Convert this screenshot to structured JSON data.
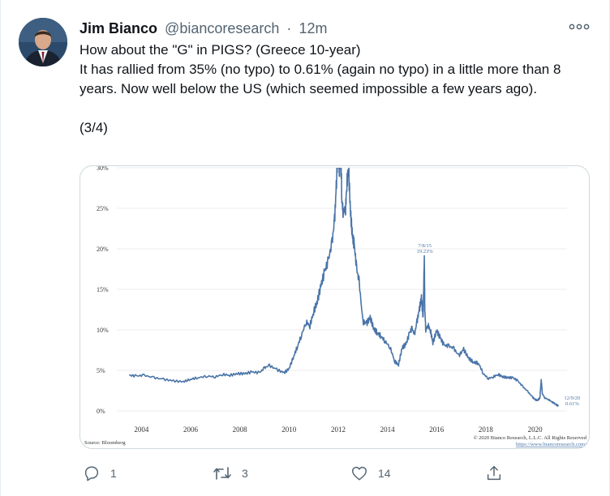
{
  "author": {
    "name": "Jim Bianco",
    "handle": "@biancoresearch",
    "separator": "·",
    "time": "12m"
  },
  "tweet": {
    "line1": "How about the \"G\" in PIGS? (Greece 10-year)",
    "line2": "It has rallied from 35% (no typo) to 0.61% (again no typo) in a little more than 8 years.  Now well below the US (which seemed impossible a few years ago).",
    "thread_marker": "(3/4)"
  },
  "actions": {
    "reply_count": "1",
    "retweet_count": "3",
    "like_count": "14"
  },
  "icons": {
    "more": "more-icon",
    "reply": "reply-icon",
    "retweet": "retweet-icon",
    "like": "heart-icon",
    "share": "share-icon"
  },
  "colors": {
    "line": "#4a74a8",
    "text_secondary": "#536471",
    "border": "#cfd9de"
  },
  "chart_data": {
    "type": "line",
    "title": "",
    "xlabel": "",
    "ylabel": "",
    "x_ticks": [
      "2004",
      "2006",
      "2008",
      "2010",
      "2012",
      "2014",
      "2016",
      "2018",
      "2020"
    ],
    "y_ticks": [
      "0%",
      "5%",
      "10%",
      "15%",
      "20%",
      "25%",
      "30%"
    ],
    "xlim": [
      2003.0,
      2021.3
    ],
    "ylim": [
      0,
      30
    ],
    "grid": true,
    "series": [
      {
        "x": [
          2003.5,
          2003.8,
          2004.1,
          2004.5,
          2004.9,
          2005.3,
          2005.7,
          2006.0,
          2006.3,
          2006.7,
          2007.0,
          2007.3,
          2007.6,
          2007.9,
          2008.2,
          2008.5,
          2008.8,
          2009.0,
          2009.2,
          2009.5,
          2009.8,
          2010.0,
          2010.2,
          2010.35,
          2010.5,
          2010.7,
          2010.85,
          2011.0,
          2011.15,
          2011.3,
          2011.45,
          2011.6,
          2011.75,
          2011.85,
          2011.92,
          2012.0,
          2012.05,
          2012.1,
          2012.15,
          2012.2,
          2012.3,
          2012.35,
          2012.42,
          2012.5,
          2012.58,
          2012.65,
          2012.75,
          2012.85,
          2013.0,
          2013.15,
          2013.3,
          2013.45,
          2013.6,
          2013.75,
          2013.9,
          2014.1,
          2014.3,
          2014.45,
          2014.6,
          2014.75,
          2014.9,
          2015.0,
          2015.1,
          2015.2,
          2015.3,
          2015.38,
          2015.45,
          2015.5,
          2015.52,
          2015.56,
          2015.65,
          2015.75,
          2015.85,
          2016.0,
          2016.15,
          2016.3,
          2016.5,
          2016.7,
          2016.9,
          2017.1,
          2017.3,
          2017.5,
          2017.7,
          2017.9,
          2018.1,
          2018.3,
          2018.5,
          2018.7,
          2018.9,
          2019.1,
          2019.3,
          2019.5,
          2019.7,
          2019.9,
          2020.0,
          2020.1,
          2020.2,
          2020.25,
          2020.3,
          2020.4,
          2020.55,
          2020.7,
          2020.85,
          2020.95
        ],
        "y": [
          4.4,
          4.3,
          4.4,
          4.1,
          3.9,
          3.7,
          3.6,
          3.9,
          4.1,
          4.3,
          4.2,
          4.5,
          4.4,
          4.6,
          4.6,
          4.8,
          4.7,
          5.3,
          5.6,
          5.1,
          4.7,
          5.2,
          6.8,
          8.0,
          9.3,
          11.0,
          10.5,
          12.2,
          13.5,
          15.5,
          17.2,
          18.6,
          20.8,
          23.5,
          27.5,
          33.0,
          29.0,
          33.0,
          26.0,
          24.5,
          25.0,
          28.0,
          30.0,
          24.5,
          21.5,
          20.5,
          17.5,
          16.0,
          11.0,
          10.8,
          11.5,
          10.1,
          9.6,
          9.2,
          8.6,
          7.9,
          6.1,
          5.7,
          7.8,
          8.2,
          9.6,
          10.2,
          9.4,
          11.0,
          12.5,
          14.0,
          11.5,
          19.2,
          12.5,
          10.0,
          10.6,
          9.9,
          8.4,
          9.9,
          9.0,
          8.1,
          8.0,
          7.7,
          6.8,
          7.6,
          6.5,
          6.0,
          5.9,
          4.6,
          4.0,
          4.2,
          4.5,
          4.2,
          4.1,
          4.1,
          3.7,
          3.0,
          2.4,
          1.7,
          1.4,
          1.3,
          1.6,
          3.9,
          2.1,
          1.6,
          1.4,
          1.1,
          0.8,
          0.6
        ]
      }
    ],
    "annotations": [
      {
        "text": "7/8/15",
        "x": 2015.52,
        "y": 19.2
      },
      {
        "text": "19.23%",
        "x": 2015.52,
        "y": 19.2
      },
      {
        "text": "12/9/20",
        "x": 2020.95,
        "y": 0.6
      },
      {
        "text": "0.61%",
        "x": 2020.95,
        "y": 0.6
      }
    ],
    "source": "Source: Bloomberg",
    "copyright": "© 2020 Bianco Research, L.L.C. All Rights Reserved",
    "url": "https://www.biancoresearch.com/"
  }
}
